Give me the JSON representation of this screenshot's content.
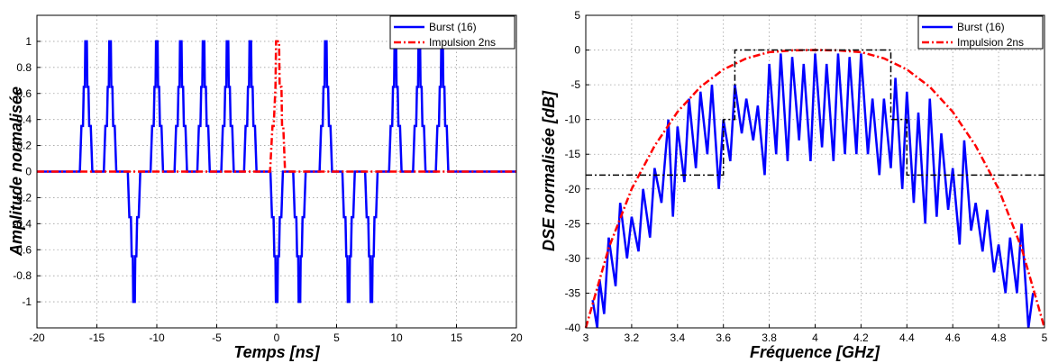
{
  "chart_data": [
    {
      "type": "line",
      "xlabel": "Temps  [ns]",
      "ylabel": "Amplitude normalisée",
      "xlim": [
        -20,
        20
      ],
      "ylim": [
        -1.2,
        1.2
      ],
      "xticks": [
        -20,
        -15,
        -10,
        -5,
        0,
        5,
        10,
        15,
        20
      ],
      "yticks": [
        -1,
        -0.8,
        -0.6,
        -0.4,
        -0.2,
        0,
        0.2,
        0.4,
        0.6,
        0.8,
        1
      ],
      "xtick_labels": [
        "-20",
        "-15",
        "-10",
        "-5",
        "0",
        "5",
        "10",
        "15",
        "20"
      ],
      "ytick_labels": [
        "-1",
        "-0.8",
        "-0.6",
        "-0.4",
        "-0.2",
        "0",
        "0.2",
        "0.4",
        "0.6",
        "0.8",
        "1"
      ],
      "grid": true,
      "legend_position": "top-right",
      "series": [
        {
          "name": "Burst (16)",
          "color": "#0000ff",
          "style": "solid",
          "pulse_width_ns": 1.04,
          "pulses": [
            {
              "center": -15.9,
              "polarity": 1
            },
            {
              "center": -13.9,
              "polarity": 1
            },
            {
              "center": -11.9,
              "polarity": -1
            },
            {
              "center": -10.0,
              "polarity": 1
            },
            {
              "center": -8.0,
              "polarity": 1
            },
            {
              "center": -6.1,
              "polarity": 1
            },
            {
              "center": -4.1,
              "polarity": 1
            },
            {
              "center": -2.2,
              "polarity": 1
            },
            {
              "center": 0.0,
              "polarity": -1
            },
            {
              "center": 1.9,
              "polarity": -1
            },
            {
              "center": 4.1,
              "polarity": 1
            },
            {
              "center": 6.0,
              "polarity": -1
            },
            {
              "center": 7.9,
              "polarity": -1
            },
            {
              "center": 9.9,
              "polarity": 1
            },
            {
              "center": 11.9,
              "polarity": 1
            },
            {
              "center": 13.8,
              "polarity": 1
            }
          ]
        },
        {
          "name": "Impulsion 2ns",
          "color": "#ff0000",
          "style": "dash-dot",
          "points": [
            [
              -20,
              0
            ],
            [
              -0.55,
              0
            ],
            [
              -0.35,
              0.35
            ],
            [
              -0.25,
              0.35
            ],
            [
              -0.1,
              0.65
            ],
            [
              -0.05,
              1.0
            ],
            [
              0.2,
              1.0
            ],
            [
              0.25,
              0.65
            ],
            [
              0.4,
              0.65
            ],
            [
              0.45,
              0.35
            ],
            [
              0.55,
              0.35
            ],
            [
              0.7,
              0
            ],
            [
              20,
              0
            ]
          ]
        }
      ]
    },
    {
      "type": "line",
      "xlabel": "Fréquence  [GHz]",
      "ylabel": "DSE normalisée  [dB]",
      "xlim": [
        3,
        5
      ],
      "ylim": [
        -40,
        5
      ],
      "xticks": [
        3,
        3.2,
        3.4,
        3.6,
        3.8,
        4,
        4.2,
        4.4,
        4.6,
        4.8,
        5
      ],
      "yticks": [
        -40,
        -35,
        -30,
        -25,
        -20,
        -15,
        -10,
        -5,
        0,
        5
      ],
      "xtick_labels": [
        "3",
        "3.2",
        "3.4",
        "3.6",
        "3.8",
        "4",
        "4.2",
        "4.4",
        "4.6",
        "4.8",
        "5"
      ],
      "ytick_labels": [
        "-40",
        "-35",
        "-30",
        "-25",
        "-20",
        "-15",
        "-10",
        "-5",
        "0",
        "5"
      ],
      "grid": true,
      "legend_position": "top-right",
      "series": [
        {
          "name": "Burst (16)",
          "color": "#0000ff",
          "style": "solid",
          "peaks": [
            {
              "x": 3.03,
              "y": -36
            },
            {
              "x": 3.06,
              "y": -33
            },
            {
              "x": 3.1,
              "y": -27
            },
            {
              "x": 3.15,
              "y": -22
            },
            {
              "x": 3.2,
              "y": -24
            },
            {
              "x": 3.25,
              "y": -20
            },
            {
              "x": 3.3,
              "y": -17
            },
            {
              "x": 3.36,
              "y": -10
            },
            {
              "x": 3.4,
              "y": -11
            },
            {
              "x": 3.45,
              "y": -7
            },
            {
              "x": 3.5,
              "y": -6
            },
            {
              "x": 3.55,
              "y": -5
            },
            {
              "x": 3.6,
              "y": -10
            },
            {
              "x": 3.65,
              "y": -5
            },
            {
              "x": 3.7,
              "y": -7
            },
            {
              "x": 3.75,
              "y": -8
            },
            {
              "x": 3.8,
              "y": -2
            },
            {
              "x": 3.85,
              "y": -0.5
            },
            {
              "x": 3.9,
              "y": -1
            },
            {
              "x": 3.95,
              "y": -2
            },
            {
              "x": 4.0,
              "y": -0.5
            },
            {
              "x": 4.05,
              "y": -2
            },
            {
              "x": 4.1,
              "y": -0.5
            },
            {
              "x": 4.15,
              "y": -1
            },
            {
              "x": 4.2,
              "y": -0.5
            },
            {
              "x": 4.25,
              "y": -7
            },
            {
              "x": 4.3,
              "y": -7
            },
            {
              "x": 4.35,
              "y": -4
            },
            {
              "x": 4.4,
              "y": -6
            },
            {
              "x": 4.45,
              "y": -9
            },
            {
              "x": 4.5,
              "y": -7
            },
            {
              "x": 4.55,
              "y": -12
            },
            {
              "x": 4.6,
              "y": -17
            },
            {
              "x": 4.65,
              "y": -13
            },
            {
              "x": 4.7,
              "y": -22
            },
            {
              "x": 4.75,
              "y": -23
            },
            {
              "x": 4.8,
              "y": -28
            },
            {
              "x": 4.85,
              "y": -27
            },
            {
              "x": 4.9,
              "y": -25
            },
            {
              "x": 4.95,
              "y": -35
            }
          ],
          "nulls": [
            {
              "x": 3.05,
              "y": -40
            },
            {
              "x": 3.08,
              "y": -38
            },
            {
              "x": 3.13,
              "y": -34
            },
            {
              "x": 3.18,
              "y": -30
            },
            {
              "x": 3.23,
              "y": -29
            },
            {
              "x": 3.28,
              "y": -27
            },
            {
              "x": 3.33,
              "y": -22
            },
            {
              "x": 3.38,
              "y": -24
            },
            {
              "x": 3.43,
              "y": -19
            },
            {
              "x": 3.48,
              "y": -17
            },
            {
              "x": 3.53,
              "y": -15
            },
            {
              "x": 3.58,
              "y": -20
            },
            {
              "x": 3.63,
              "y": -16
            },
            {
              "x": 3.68,
              "y": -12
            },
            {
              "x": 3.73,
              "y": -13
            },
            {
              "x": 3.78,
              "y": -18
            },
            {
              "x": 3.83,
              "y": -15
            },
            {
              "x": 3.88,
              "y": -16
            },
            {
              "x": 3.93,
              "y": -13
            },
            {
              "x": 3.98,
              "y": -16
            },
            {
              "x": 4.03,
              "y": -14
            },
            {
              "x": 4.08,
              "y": -16
            },
            {
              "x": 4.13,
              "y": -15
            },
            {
              "x": 4.18,
              "y": -15
            },
            {
              "x": 4.23,
              "y": -15
            },
            {
              "x": 4.28,
              "y": -18
            },
            {
              "x": 4.33,
              "y": -17
            },
            {
              "x": 4.38,
              "y": -20
            },
            {
              "x": 4.43,
              "y": -22
            },
            {
              "x": 4.48,
              "y": -25
            },
            {
              "x": 4.53,
              "y": -24
            },
            {
              "x": 4.58,
              "y": -23
            },
            {
              "x": 4.63,
              "y": -28
            },
            {
              "x": 4.68,
              "y": -26
            },
            {
              "x": 4.73,
              "y": -29
            },
            {
              "x": 4.78,
              "y": -32
            },
            {
              "x": 4.83,
              "y": -35
            },
            {
              "x": 4.88,
              "y": -35
            },
            {
              "x": 4.93,
              "y": -40
            }
          ]
        },
        {
          "name": "Impulsion 2ns",
          "color": "#ff0000",
          "style": "dash-dot",
          "x": [
            3.0,
            3.1,
            3.2,
            3.3,
            3.4,
            3.5,
            3.6,
            3.7,
            3.8,
            3.9,
            4.0,
            4.1,
            4.2,
            4.3,
            4.4,
            4.5,
            4.6,
            4.7,
            4.8,
            4.9,
            5.0
          ],
          "y": [
            -40,
            -28.5,
            -20.0,
            -13.8,
            -8.9,
            -5.3,
            -2.8,
            -1.2,
            -0.3,
            -0.05,
            0,
            -0.05,
            -0.3,
            -1.2,
            -2.8,
            -5.3,
            -8.9,
            -13.8,
            -20.0,
            -28.5,
            -40
          ]
        },
        {
          "name": "",
          "color": "#000000",
          "style": "dash-dot",
          "points": [
            [
              3.0,
              -18
            ],
            [
              3.6,
              -18
            ],
            [
              3.6,
              -10
            ],
            [
              3.65,
              -10
            ],
            [
              3.65,
              0
            ],
            [
              4.33,
              0
            ],
            [
              4.33,
              -10
            ],
            [
              4.4,
              -10
            ],
            [
              4.4,
              -18
            ],
            [
              5.0,
              -18
            ]
          ]
        }
      ]
    }
  ]
}
